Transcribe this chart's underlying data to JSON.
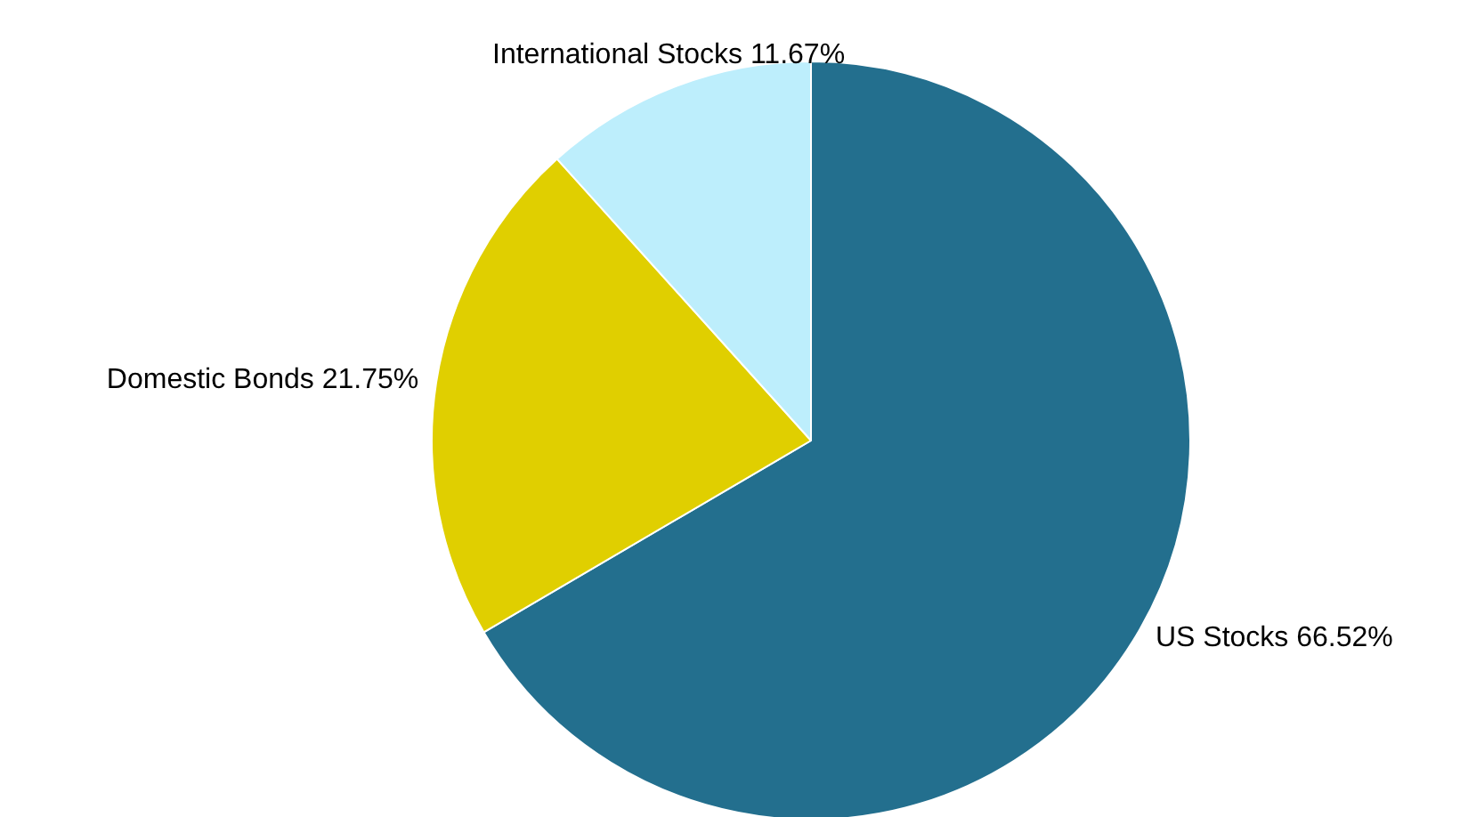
{
  "chart_data": {
    "type": "pie",
    "categories": [
      "US Stocks",
      "Domestic Bonds",
      "International Stocks"
    ],
    "values": [
      66.52,
      21.75,
      11.67
    ],
    "colors": [
      "#236f8e",
      "#e0cf00",
      "#bdeefc"
    ],
    "value_labels": [
      "66.52%",
      "21.75%",
      "11.67%"
    ],
    "legend": false
  }
}
